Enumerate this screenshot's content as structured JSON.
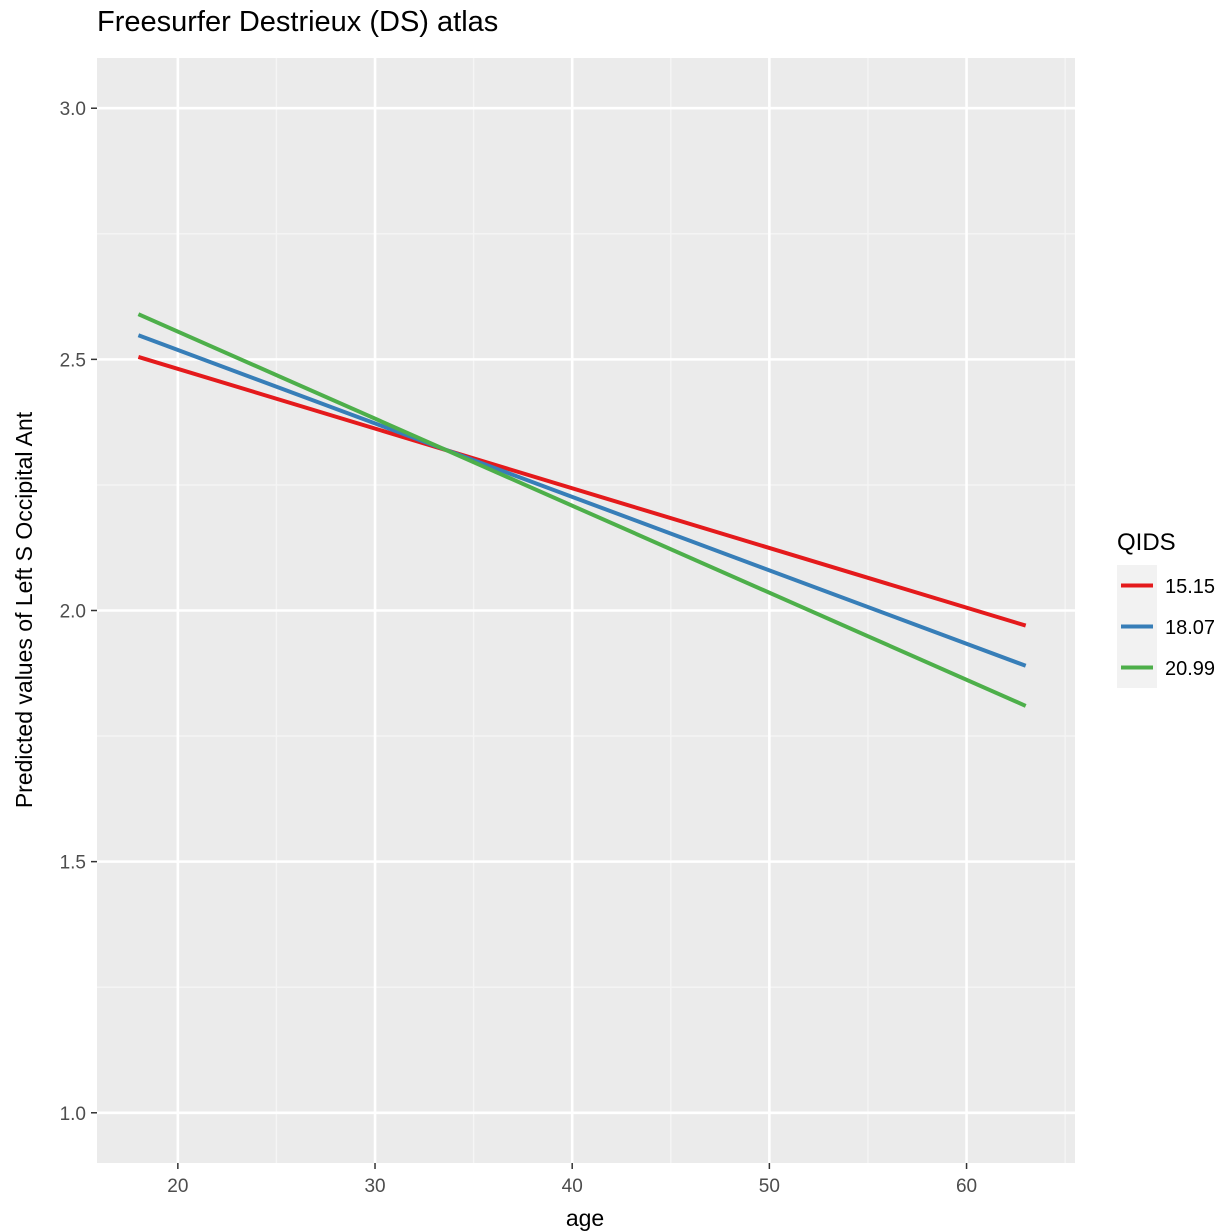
{
  "chart_data": {
    "type": "line",
    "title": "Freesurfer Destrieux (DS) atlas",
    "xlabel": "age",
    "ylabel": "Predicted values of Left S Occipital Ant",
    "xlim": [
      15.9,
      65.5
    ],
    "ylim": [
      0.9,
      3.1
    ],
    "x_ticks": [
      20,
      30,
      40,
      50,
      60
    ],
    "y_ticks": [
      1.0,
      1.5,
      2.0,
      2.5,
      3.0
    ],
    "y_tick_labels": [
      "1.0",
      "1.5",
      "2.0",
      "2.5",
      "3.0"
    ],
    "grid": true,
    "legend": {
      "title": "QIDS",
      "position": "right"
    },
    "series": [
      {
        "name": "15.15",
        "color": "#E41A1C",
        "x": [
          18,
          63
        ],
        "y": [
          2.505,
          1.97
        ]
      },
      {
        "name": "18.07",
        "color": "#377EB8",
        "x": [
          18,
          63
        ],
        "y": [
          2.548,
          1.89
        ]
      },
      {
        "name": "20.99",
        "color": "#4DAF4A",
        "x": [
          18,
          63
        ],
        "y": [
          2.59,
          1.81
        ]
      }
    ]
  }
}
